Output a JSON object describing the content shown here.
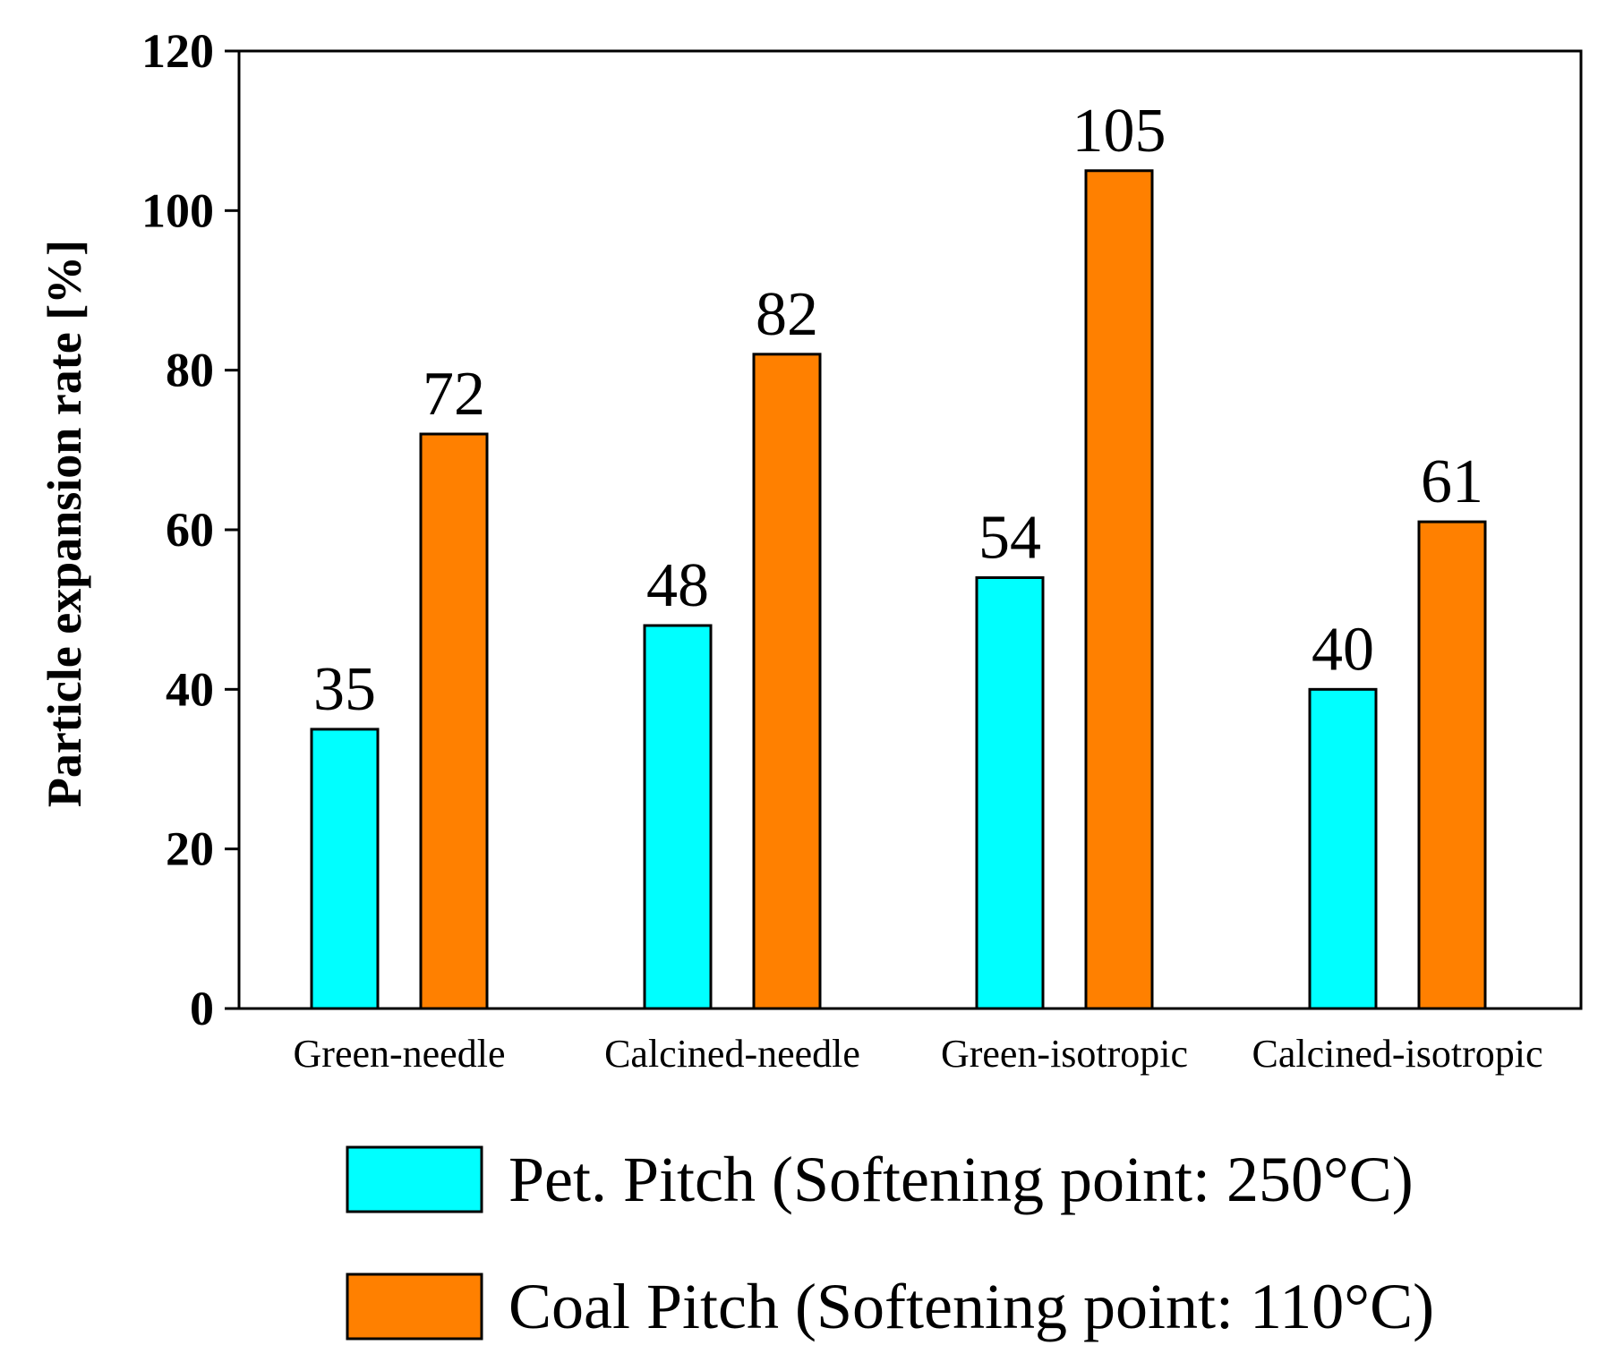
{
  "chart_data": {
    "type": "bar",
    "title": "",
    "xlabel": "",
    "ylabel": "Particle expansion rate [%]",
    "ylim": [
      0,
      120
    ],
    "yticks": [
      0,
      20,
      40,
      60,
      80,
      100,
      120
    ],
    "grid": false,
    "legend_position": "bottom",
    "categories": [
      "Green-needle",
      "Calcined-needle",
      "Green-isotropic",
      "Calcined-isotropic"
    ],
    "series": [
      {
        "name": "Pet. Pitch (Softening point: 250°C)",
        "color": "#00ffff",
        "values": [
          35,
          48,
          54,
          40
        ]
      },
      {
        "name": "Coal Pitch (Softening point: 110°C)",
        "color": "#ff8000",
        "values": [
          72,
          82,
          105,
          61
        ]
      }
    ]
  }
}
